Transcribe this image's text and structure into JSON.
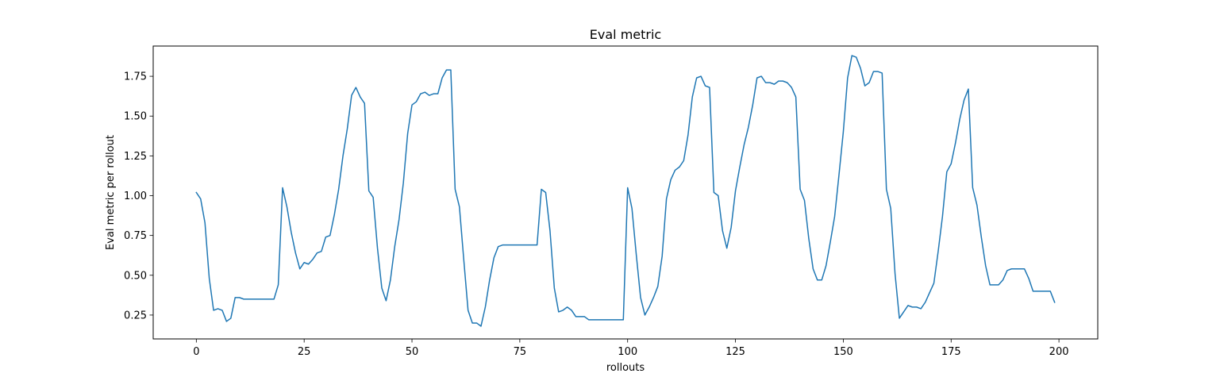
{
  "chart_data": {
    "type": "line",
    "title": "Eval metric",
    "xlabel": "rollouts",
    "ylabel": "Eval metric per rollout",
    "xlim": [
      -10,
      209
    ],
    "ylim": [
      0.1,
      1.94
    ],
    "xticks": [
      0,
      25,
      50,
      75,
      100,
      125,
      150,
      175,
      200
    ],
    "xtick_labels": [
      "0",
      "25",
      "50",
      "75",
      "100",
      "125",
      "150",
      "175",
      "200"
    ],
    "yticks": [
      0.25,
      0.5,
      0.75,
      1.0,
      1.25,
      1.5,
      1.75
    ],
    "ytick_labels": [
      "0.25",
      "0.50",
      "0.75",
      "1.00",
      "1.25",
      "1.50",
      "1.75"
    ],
    "grid": false,
    "color": "#1f77b4",
    "series": [
      {
        "values": [
          1.02,
          0.98,
          0.83,
          0.48,
          0.28,
          0.29,
          0.28,
          0.21,
          0.23,
          0.36,
          0.36,
          0.35,
          0.35,
          0.35,
          0.35,
          0.35,
          0.35,
          0.35,
          0.35,
          0.44,
          1.05,
          0.93,
          0.77,
          0.64,
          0.54,
          0.58,
          0.57,
          0.6,
          0.64,
          0.65,
          0.74,
          0.75,
          0.88,
          1.04,
          1.25,
          1.42,
          1.63,
          1.68,
          1.62,
          1.58,
          1.03,
          0.99,
          0.67,
          0.42,
          0.34,
          0.47,
          0.68,
          0.85,
          1.08,
          1.39,
          1.57,
          1.59,
          1.64,
          1.65,
          1.63,
          1.64,
          1.64,
          1.74,
          1.79,
          1.79,
          1.04,
          0.93,
          0.6,
          0.28,
          0.2,
          0.2,
          0.18,
          0.3,
          0.47,
          0.61,
          0.68,
          0.69,
          0.69,
          0.69,
          0.69,
          0.69,
          0.69,
          0.69,
          0.69,
          0.69,
          1.04,
          1.02,
          0.78,
          0.42,
          0.27,
          0.28,
          0.3,
          0.28,
          0.24,
          0.24,
          0.24,
          0.22,
          0.22,
          0.22,
          0.22,
          0.22,
          0.22,
          0.22,
          0.22,
          0.22,
          1.05,
          0.92,
          0.63,
          0.36,
          0.25,
          0.3,
          0.36,
          0.43,
          0.62,
          0.98,
          1.1,
          1.16,
          1.18,
          1.22,
          1.38,
          1.62,
          1.74,
          1.75,
          1.69,
          1.68,
          1.02,
          1.0,
          0.78,
          0.67,
          0.8,
          1.03,
          1.18,
          1.32,
          1.43,
          1.57,
          1.74,
          1.75,
          1.71,
          1.71,
          1.7,
          1.72,
          1.72,
          1.71,
          1.68,
          1.62,
          1.04,
          0.97,
          0.73,
          0.54,
          0.47,
          0.47,
          0.56,
          0.71,
          0.87,
          1.13,
          1.4,
          1.74,
          1.88,
          1.87,
          1.8,
          1.69,
          1.71,
          1.78,
          1.78,
          1.77,
          1.04,
          0.92,
          0.51,
          0.23,
          0.27,
          0.31,
          0.3,
          0.3,
          0.29,
          0.33,
          0.39,
          0.45,
          0.65,
          0.87,
          1.15,
          1.2,
          1.33,
          1.48,
          1.6,
          1.67,
          1.05,
          0.94,
          0.74,
          0.56,
          0.44,
          0.44,
          0.44,
          0.47,
          0.53,
          0.54,
          0.54,
          0.54,
          0.54,
          0.48,
          0.4,
          0.4,
          0.4,
          0.4,
          0.4,
          0.33
        ]
      }
    ]
  }
}
